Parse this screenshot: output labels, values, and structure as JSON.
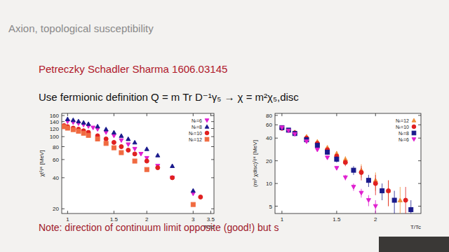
{
  "slide": {
    "title": "Axion, topological susceptibility",
    "reference": "Petreczky Schadler Sharma 1606.03145",
    "definition": "Use fermionic definition Q = m Tr D⁻¹γ₅ → χ = m²χ₅,disc",
    "note": "Note: direction of continuum limit opposite (good!) but s"
  },
  "chart_data": [
    {
      "type": "scatter",
      "x_label": "T/Tc",
      "y_label": "χt¹/⁴ [MeV]",
      "log": true,
      "legend": "upper right",
      "xlim": [
        0.95,
        3.6
      ],
      "ylim": [
        18,
        168
      ],
      "xticks": [
        1,
        1.5,
        2,
        3,
        3.5
      ],
      "yticks": [
        20,
        40,
        60,
        80,
        100,
        120,
        140,
        160
      ],
      "series": [
        {
          "name": "Nₜ=6",
          "color": "#e020d0",
          "marker": "triangle-down",
          "x": [
            1.0,
            1.05,
            1.1,
            1.15,
            1.2,
            1.25,
            1.3,
            1.4,
            1.5,
            1.6,
            1.7,
            1.8,
            1.9,
            2.0,
            2.2,
            2.5,
            3.0
          ],
          "values": [
            140,
            137,
            134,
            130,
            126,
            122,
            118,
            110,
            102,
            92,
            84,
            76,
            68,
            62,
            52,
            40,
            28
          ]
        },
        {
          "name": "Nₜ=8",
          "color": "#1a1a8c",
          "marker": "triangle",
          "x": [
            1.0,
            1.05,
            1.1,
            1.15,
            1.2,
            1.3,
            1.4,
            1.5,
            1.6,
            1.7,
            1.8,
            2.0,
            2.2,
            2.5,
            3.0
          ],
          "values": [
            148,
            145,
            141,
            137,
            133,
            126,
            118,
            110,
            102,
            95,
            88,
            76,
            66,
            52,
            30
          ]
        },
        {
          "name": "Nₜ=10",
          "color": "#e02020",
          "marker": "circle",
          "x": [
            0.97,
            1.0,
            1.05,
            1.1,
            1.15,
            1.2,
            1.3,
            1.4,
            1.5,
            1.6,
            1.7,
            1.8,
            2.0,
            2.2,
            2.5,
            3.2
          ],
          "values": [
            128,
            125,
            121,
            118,
            114,
            110,
            102,
            95,
            88,
            80,
            74,
            68,
            58,
            50,
            40,
            26
          ]
        },
        {
          "name": "Nₜ=12",
          "color": "#f06a40",
          "marker": "square",
          "x": [
            0.97,
            1.0,
            1.05,
            1.1,
            1.15,
            1.2,
            1.3,
            1.4,
            1.5,
            1.6,
            1.8,
            2.0,
            3.0
          ],
          "values": [
            125,
            121,
            117,
            113,
            108,
            103,
            95,
            86,
            78,
            70,
            58,
            48,
            22
          ]
        }
      ]
    },
    {
      "type": "scatter",
      "x_label": "T/Tc",
      "y_label": "(m² χdisc)¹/⁴ [MeV]",
      "log": true,
      "legend": "upper right",
      "xlim": [
        0.95,
        2.8
      ],
      "ylim": [
        4,
        85
      ],
      "xticks": [
        1,
        1.5,
        2
      ],
      "yticks": [
        5,
        10,
        20,
        40,
        60,
        80
      ],
      "series": [
        {
          "name": "Nₜ=12",
          "color": "#f0903a",
          "marker": "triangle",
          "x": [
            1.0,
            1.1,
            1.2,
            1.3,
            1.4,
            1.5,
            1.6,
            1.8,
            2.0,
            2.2,
            2.4
          ],
          "values": [
            55,
            48,
            42,
            36,
            30,
            25,
            21,
            15,
            11,
            8,
            6
          ],
          "errors": [
            2,
            2,
            2,
            2,
            2,
            2,
            2,
            3,
            3,
            3,
            3
          ]
        },
        {
          "name": "Nₜ=10",
          "color": "#e02020",
          "marker": "circle",
          "x": [
            1.0,
            1.1,
            1.2,
            1.3,
            1.4,
            1.5,
            1.6,
            1.8,
            2.0,
            2.2,
            2.5
          ],
          "values": [
            54,
            47,
            40,
            34,
            28,
            23,
            19,
            14,
            10,
            8,
            6
          ],
          "errors": [
            2,
            2,
            2,
            2,
            2,
            2,
            2,
            3,
            3,
            3,
            3
          ]
        },
        {
          "name": "Nₜ=8",
          "color": "#1a1a8c",
          "marker": "square",
          "x": [
            1.0,
            1.05,
            1.1,
            1.2,
            1.3,
            1.4,
            1.5,
            1.7,
            1.9,
            2.1,
            2.3,
            2.6
          ],
          "values": [
            55,
            51,
            46,
            38,
            32,
            26,
            21,
            15,
            11,
            8,
            6,
            4.5
          ],
          "errors": [
            2,
            2,
            2,
            2,
            2,
            2,
            2,
            2,
            2,
            2,
            2,
            1.5
          ]
        },
        {
          "name": "Nₜ=6",
          "color": "#e020d0",
          "marker": "triangle-down",
          "x": [
            1.0,
            1.05,
            1.1,
            1.2,
            1.3,
            1.4,
            1.5,
            1.6,
            1.7,
            1.8,
            1.9,
            2.0
          ],
          "values": [
            55,
            50,
            45,
            36,
            28,
            22,
            16,
            12,
            9,
            7.5,
            6,
            5
          ],
          "errors": [
            1,
            1,
            1,
            1,
            1,
            1,
            1,
            1,
            1,
            1,
            1,
            1
          ]
        }
      ]
    }
  ]
}
